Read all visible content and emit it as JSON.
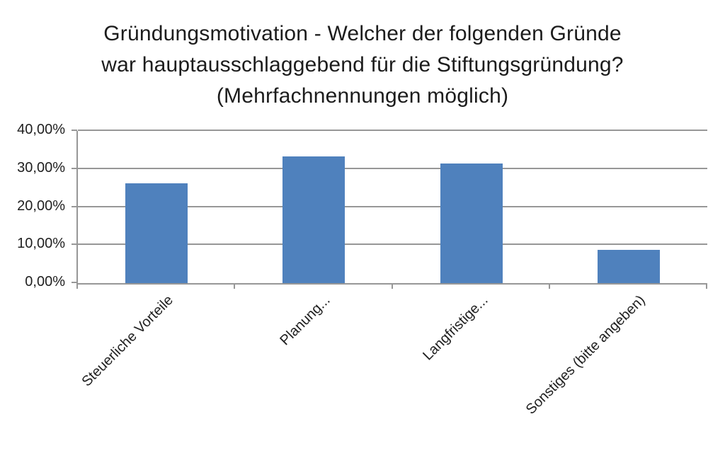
{
  "title": {
    "lines": [
      "Gründungsmotivation - Welcher der folgenden Gründe",
      "war hauptausschlaggebend für die Stiftungsgründung?",
      "(Mehrfachnennungen möglich)"
    ]
  },
  "chart_data": {
    "type": "bar",
    "title": "Gründungsmotivation - Welcher der folgenden Gründe war hauptausschlaggebend für die Stiftungsgründung? (Mehrfachnennungen möglich)",
    "categories": [
      "Steuerliche Vorteile",
      "Planung...",
      "Langfristige...",
      "Sonstiges (bitte angeben)"
    ],
    "values": [
      26.3,
      33.3,
      31.5,
      8.8
    ],
    "value_unit": "%",
    "xlabel": "",
    "ylabel": "",
    "ylim": [
      0,
      40
    ],
    "y_tick_step": 10,
    "y_tick_labels": [
      "0,00%",
      "10,00%",
      "20,00%",
      "30,00%",
      "40,00%"
    ],
    "grid": true,
    "legend": false,
    "x_labels_rotation_deg": 45,
    "bar_color": "#4F81BD",
    "axis_color": "#979797",
    "text_color": "#1f1f1f"
  }
}
